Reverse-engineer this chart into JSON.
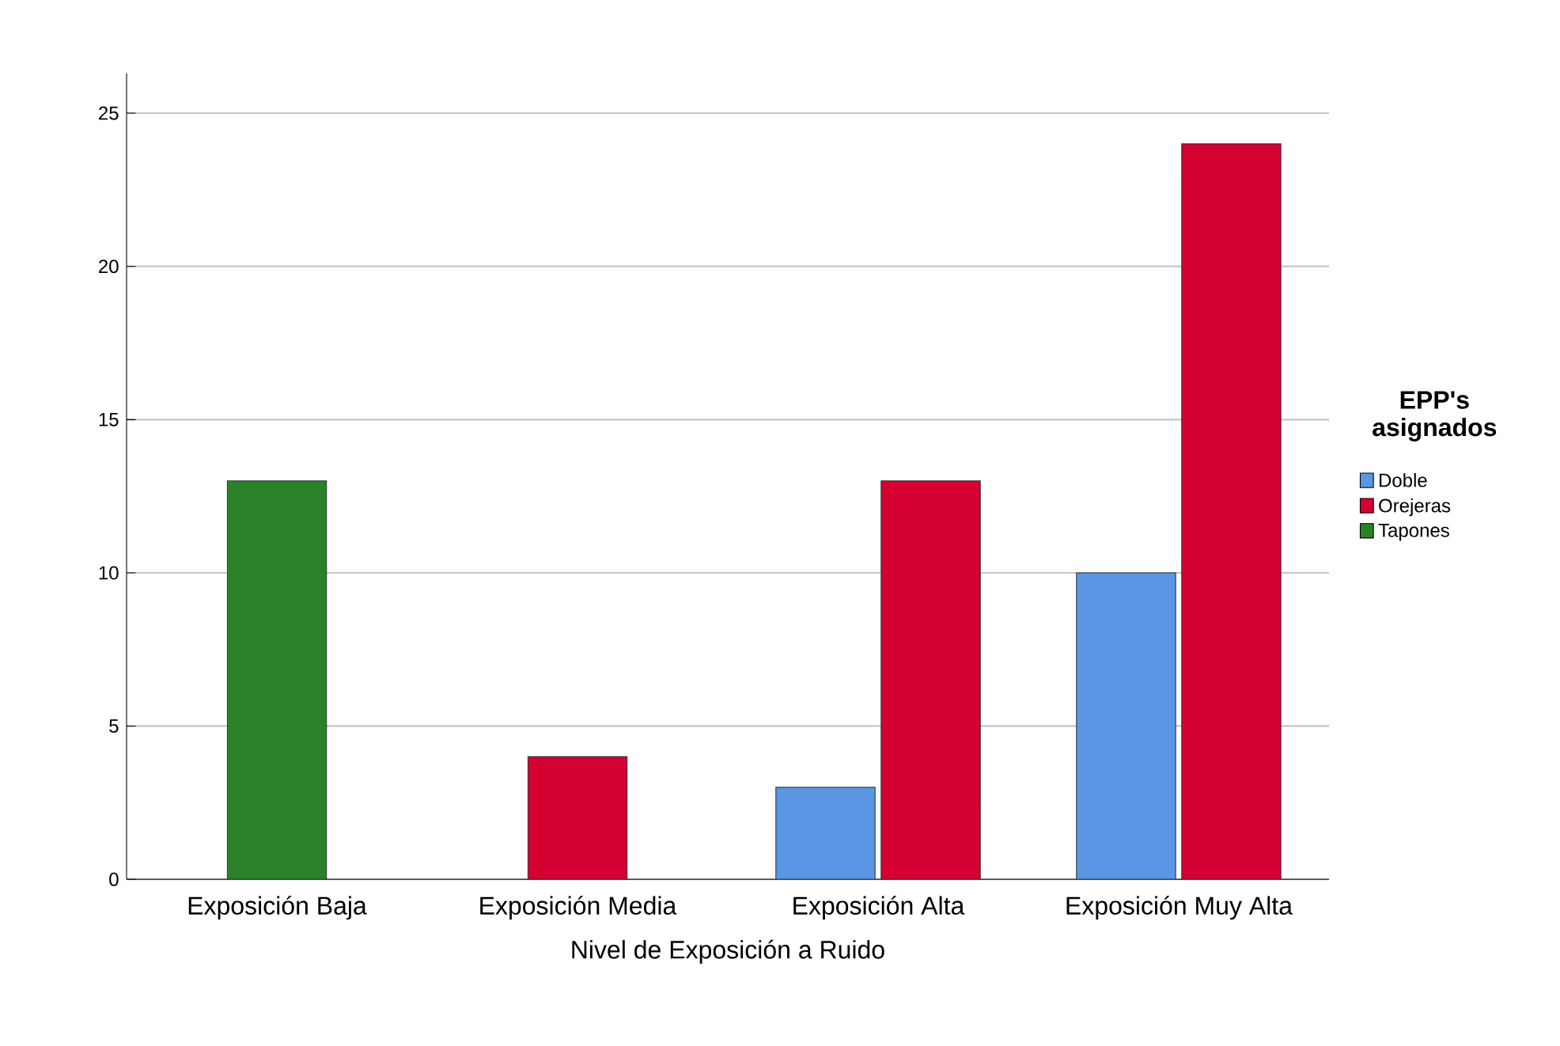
{
  "chart_data": {
    "type": "bar",
    "xlabel": "Nivel de Exposición a Ruido",
    "legend_title": "EPP's asignados",
    "categories": [
      "Exposición Baja",
      "Exposición Media",
      "Exposición Alta",
      "Exposición Muy Alta"
    ],
    "series": [
      {
        "name": "Doble",
        "color": "#5a96e3",
        "values": [
          null,
          null,
          3,
          10
        ]
      },
      {
        "name": "Orejeras",
        "color": "#d50032",
        "values": [
          null,
          4,
          13,
          24
        ]
      },
      {
        "name": "Tapones",
        "color": "#2a8228",
        "values": [
          13,
          null,
          null,
          null
        ]
      }
    ],
    "ylim": [
      0,
      26.3
    ],
    "yticks": [
      0,
      5,
      10,
      15,
      20,
      25
    ],
    "grid": "y",
    "legend": "right"
  }
}
